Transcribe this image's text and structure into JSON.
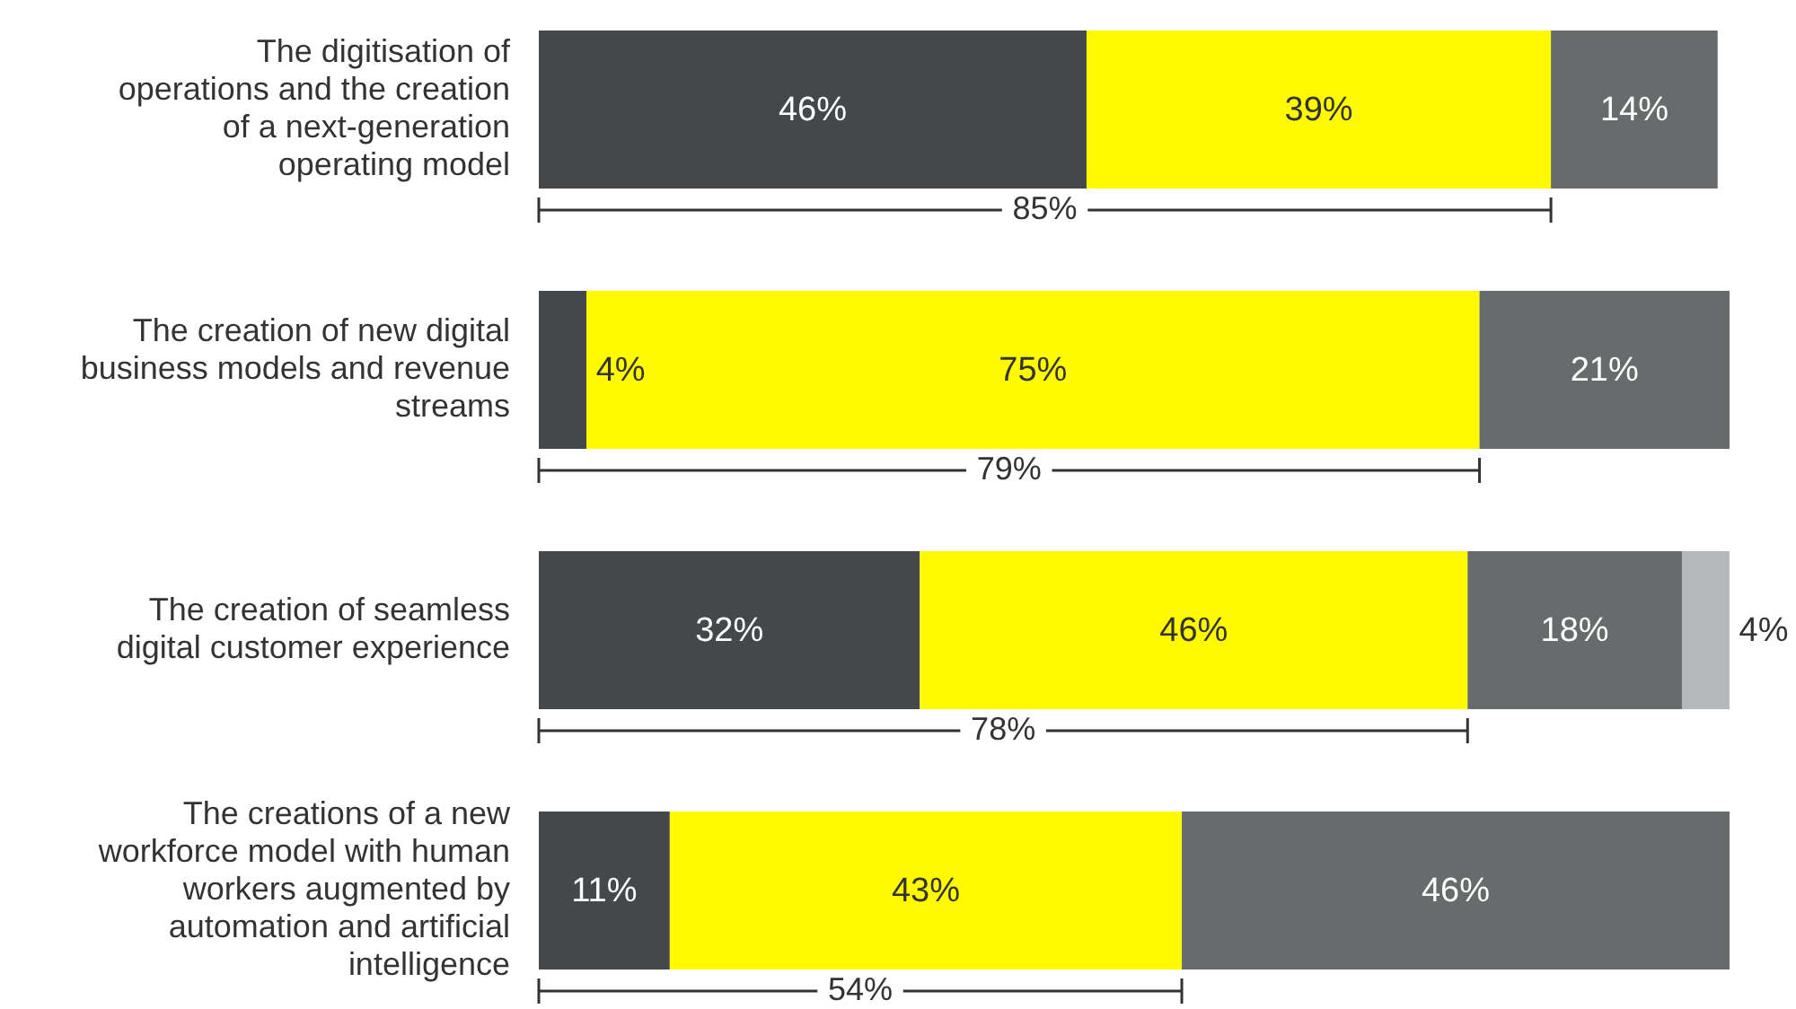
{
  "chart_data": {
    "type": "bar",
    "orientation": "horizontal",
    "stacked": true,
    "categories": [
      "The digitisation of operations and the creation of a next-generation operating model",
      "The creation of new digital business models and revenue streams",
      "The creation of seamless digital customer experience",
      "The creations of a new workforce model with human workers augmented by automation and artificial intelligence"
    ],
    "series": [
      {
        "color": "#45484a",
        "values": [
          46,
          4,
          32,
          11
        ],
        "value_labels": [
          "46%",
          "4%",
          "32%",
          "11%"
        ]
      },
      {
        "color": "#fffa00",
        "values": [
          39,
          75,
          46,
          43
        ],
        "value_labels": [
          "39%",
          "75%",
          "46%",
          "43%"
        ]
      },
      {
        "color": "#676b6b",
        "values": [
          14,
          21,
          18,
          46
        ],
        "value_labels": [
          "14%",
          "21%",
          "18%",
          "46%"
        ]
      },
      {
        "color": "#b5b8ba",
        "values": [
          null,
          null,
          4,
          null
        ],
        "value_labels": [
          null,
          null,
          "4%",
          null
        ]
      }
    ],
    "annotations": [
      "85%",
      "79%",
      "78%",
      "54%"
    ]
  }
}
